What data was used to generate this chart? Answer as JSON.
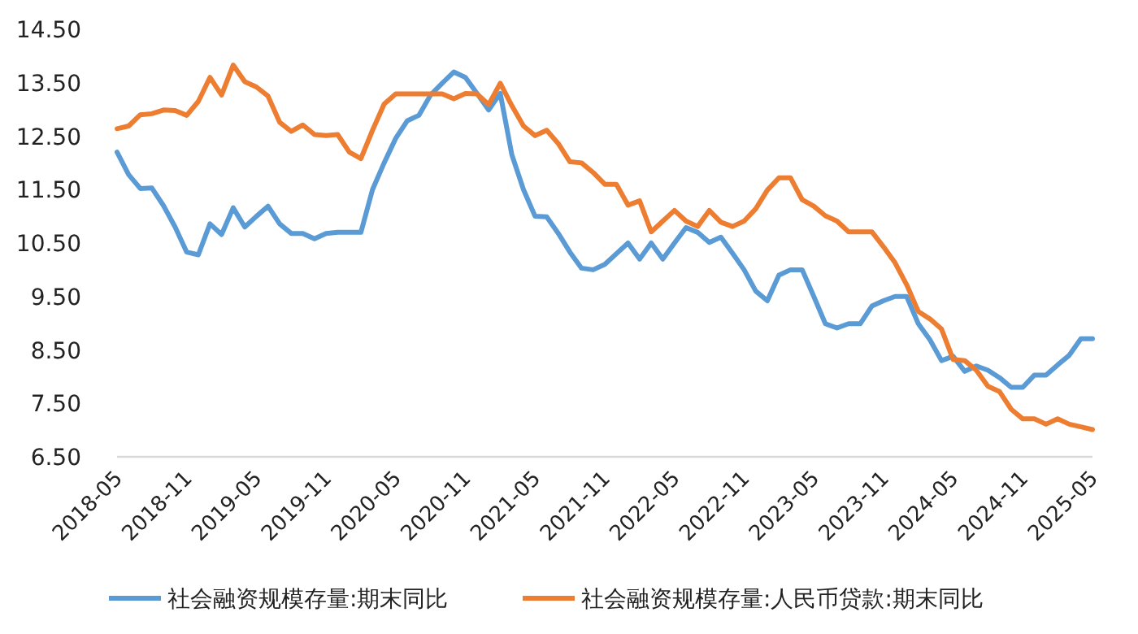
{
  "chart_data": {
    "type": "line",
    "legend": "bottom",
    "grid": false,
    "marker": "none",
    "line_style": "solid",
    "x": [
      "2018-05",
      "2018-06",
      "2018-07",
      "2018-08",
      "2018-09",
      "2018-10",
      "2018-11",
      "2018-12",
      "2019-01",
      "2019-02",
      "2019-03",
      "2019-04",
      "2019-05",
      "2019-06",
      "2019-07",
      "2019-08",
      "2019-09",
      "2019-10",
      "2019-11",
      "2019-12",
      "2020-01",
      "2020-02",
      "2020-03",
      "2020-04",
      "2020-05",
      "2020-06",
      "2020-07",
      "2020-08",
      "2020-09",
      "2020-10",
      "2020-11",
      "2020-12",
      "2021-01",
      "2021-02",
      "2021-03",
      "2021-04",
      "2021-05",
      "2021-06",
      "2021-07",
      "2021-08",
      "2021-09",
      "2021-10",
      "2021-11",
      "2021-12",
      "2022-01",
      "2022-02",
      "2022-03",
      "2022-04",
      "2022-05",
      "2022-06",
      "2022-07",
      "2022-08",
      "2022-09",
      "2022-10",
      "2022-11",
      "2022-12",
      "2023-01",
      "2023-02",
      "2023-03",
      "2023-04",
      "2023-05",
      "2023-06",
      "2023-07",
      "2023-08",
      "2023-09",
      "2023-10",
      "2023-11",
      "2023-12",
      "2024-01",
      "2024-02",
      "2024-03",
      "2024-04",
      "2024-05",
      "2024-06",
      "2024-07",
      "2024-08",
      "2024-09",
      "2024-10",
      "2024-11",
      "2024-12",
      "2025-01",
      "2025-02",
      "2025-03",
      "2025-04",
      "2025-05"
    ],
    "xlim": [
      "2018-05",
      "2025-05"
    ],
    "xticks": [
      "2018-05",
      "2018-11",
      "2019-05",
      "2019-11",
      "2020-05",
      "2020-11",
      "2021-05",
      "2021-11",
      "2022-05",
      "2022-11",
      "2023-05",
      "2023-11",
      "2024-05",
      "2024-11",
      "2025-05"
    ],
    "ylim": [
      6.5,
      14.5
    ],
    "yticks": [
      {
        "value": 6.5,
        "label": "6.50"
      },
      {
        "value": 7.5,
        "label": "7.50"
      },
      {
        "value": 8.5,
        "label": "8.50"
      },
      {
        "value": 9.5,
        "label": "9.50"
      },
      {
        "value": 10.5,
        "label": "10.50"
      },
      {
        "value": 11.5,
        "label": "11.50"
      },
      {
        "value": 12.5,
        "label": "12.50"
      },
      {
        "value": 13.5,
        "label": "13.50"
      },
      {
        "value": 14.5,
        "label": "14.50"
      }
    ],
    "series": [
      {
        "name": "社会融资规模存量:期末同比",
        "color": "#5b9bd5",
        "values": [
          12.2,
          11.78,
          11.52,
          11.53,
          11.2,
          10.8,
          10.33,
          10.28,
          10.86,
          10.66,
          11.16,
          10.8,
          11.0,
          11.19,
          10.86,
          10.68,
          10.68,
          10.58,
          10.68,
          10.7,
          10.7,
          10.7,
          11.5,
          12.0,
          12.46,
          12.79,
          12.89,
          13.27,
          13.49,
          13.7,
          13.6,
          13.3,
          12.99,
          13.3,
          12.15,
          11.5,
          11.0,
          10.99,
          10.68,
          10.33,
          10.03,
          10.0,
          10.1,
          10.3,
          10.5,
          10.2,
          10.5,
          10.2,
          10.5,
          10.79,
          10.7,
          10.51,
          10.61,
          10.31,
          10.0,
          9.6,
          9.42,
          9.9,
          10.0,
          10.0,
          9.5,
          8.99,
          8.91,
          8.99,
          8.99,
          9.32,
          9.42,
          9.5,
          9.5,
          8.99,
          8.69,
          8.3,
          8.38,
          8.1,
          8.2,
          8.12,
          7.98,
          7.8,
          7.8,
          8.03,
          8.03,
          8.22,
          8.4,
          8.71,
          8.71
        ]
      },
      {
        "name": "社会融资规模存量:人民币贷款:期末同比",
        "color": "#ed7d31",
        "values": [
          12.64,
          12.69,
          12.9,
          12.92,
          12.99,
          12.98,
          12.89,
          13.15,
          13.6,
          13.27,
          13.83,
          13.52,
          13.42,
          13.25,
          12.76,
          12.59,
          12.71,
          12.53,
          12.51,
          12.53,
          12.2,
          12.08,
          12.61,
          13.1,
          13.29,
          13.29,
          13.29,
          13.29,
          13.29,
          13.2,
          13.3,
          13.29,
          13.09,
          13.49,
          13.07,
          12.69,
          12.51,
          12.61,
          12.36,
          12.02,
          12.0,
          11.82,
          11.6,
          11.6,
          11.21,
          11.29,
          10.71,
          10.91,
          11.11,
          10.91,
          10.81,
          11.11,
          10.89,
          10.81,
          10.91,
          11.14,
          11.49,
          11.72,
          11.72,
          11.31,
          11.19,
          11.01,
          10.91,
          10.71,
          10.71,
          10.71,
          10.43,
          10.13,
          9.72,
          9.22,
          9.08,
          8.89,
          8.32,
          8.3,
          8.12,
          7.82,
          7.72,
          7.39,
          7.21,
          7.21,
          7.11,
          7.21,
          7.11,
          7.06,
          7.01
        ]
      }
    ]
  }
}
